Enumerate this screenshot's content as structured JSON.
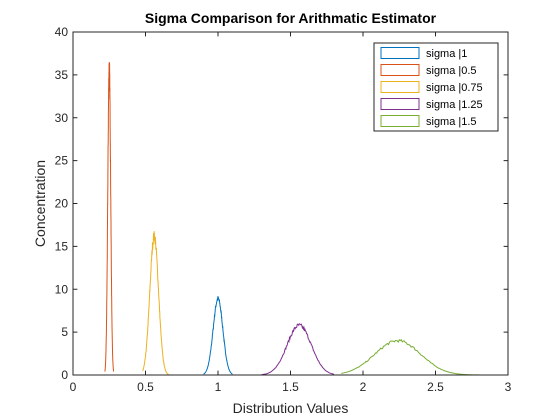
{
  "chart_data": {
    "type": "line",
    "title": "Sigma Comparison for Arithmatic Estimator",
    "xlabel": "Distribution Values",
    "ylabel": "Concentration",
    "xlim": [
      0,
      3
    ],
    "ylim": [
      0,
      40
    ],
    "xticks": [
      0,
      0.5,
      1,
      1.5,
      2,
      2.5,
      3
    ],
    "yticks": [
      0,
      5,
      10,
      15,
      20,
      25,
      30,
      35,
      40
    ],
    "grid": false,
    "legend_position": "top-right",
    "series": [
      {
        "name": "sigma |1",
        "color": "#0072bd",
        "peak_x": 1.0,
        "peak_y": 8.9,
        "range": [
          0.9,
          1.1
        ]
      },
      {
        "name": "sigma |0.5",
        "color": "#d95319",
        "peak_x": 0.25,
        "peak_y": 36.0,
        "range": [
          0.22,
          0.28
        ]
      },
      {
        "name": "sigma |0.75",
        "color": "#edb120",
        "peak_x": 0.56,
        "peak_y": 16.2,
        "range": [
          0.48,
          0.66
        ]
      },
      {
        "name": "sigma |1.25",
        "color": "#7e2f8e",
        "peak_x": 1.56,
        "peak_y": 5.8,
        "range": [
          1.3,
          1.8
        ]
      },
      {
        "name": "sigma |1.5",
        "color": "#77ac30",
        "peak_x": 2.24,
        "peak_y": 4.0,
        "range": [
          1.85,
          2.8
        ]
      }
    ]
  }
}
